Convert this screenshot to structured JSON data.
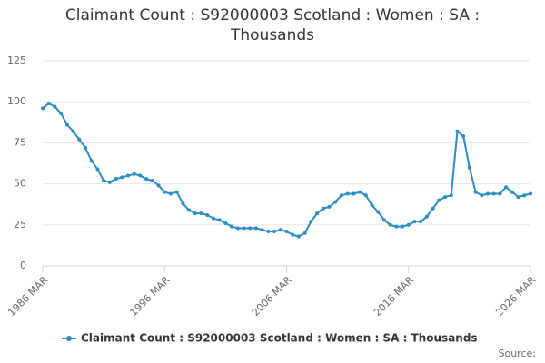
{
  "chart_data": {
    "type": "line",
    "title": "Claimant Count : S92000003 Scotland : Women : SA : Thousands",
    "source": "Source:",
    "categories": [
      "1986 MAR",
      null,
      null,
      null,
      null,
      null,
      null,
      null,
      null,
      null,
      null,
      null,
      null,
      null,
      null,
      null,
      null,
      null,
      null,
      null,
      "1996 MAR",
      null,
      null,
      null,
      null,
      null,
      null,
      null,
      null,
      null,
      null,
      null,
      null,
      null,
      null,
      null,
      null,
      null,
      null,
      null,
      "2006 MAR",
      null,
      null,
      null,
      null,
      null,
      null,
      null,
      null,
      null,
      null,
      null,
      null,
      null,
      null,
      null,
      null,
      null,
      null,
      null,
      "2016 MAR",
      null,
      null,
      null,
      null,
      null,
      null,
      null,
      null,
      null,
      null,
      null,
      null,
      null,
      null,
      null,
      null,
      null,
      null,
      null,
      "2026 MAR"
    ],
    "series": [
      {
        "name": "Claimant Count : S92000003 Scotland : Women : SA : Thousands",
        "color": "#2b8cc4",
        "values": [
          96,
          99,
          97,
          93,
          86,
          82,
          77,
          72,
          64,
          59,
          52,
          51,
          53,
          54,
          55,
          56,
          55,
          53,
          52,
          49,
          45,
          44,
          45,
          38,
          34,
          32,
          32,
          31,
          29,
          28,
          26,
          24,
          23,
          23,
          23,
          23,
          22,
          21,
          21,
          22,
          21,
          19,
          18,
          20,
          27,
          32,
          35,
          36,
          39,
          43,
          44,
          44,
          45,
          43,
          37,
          33,
          28,
          25,
          24,
          24,
          25,
          27,
          27,
          30,
          35,
          40,
          42,
          43,
          82,
          79,
          60,
          45,
          43,
          44,
          44,
          44,
          48,
          45,
          42,
          43,
          44
        ]
      }
    ],
    "ylim": [
      0,
      125
    ],
    "yticks": [
      0,
      25,
      50,
      75,
      100,
      125
    ],
    "grid": true,
    "legend": "bottom"
  }
}
